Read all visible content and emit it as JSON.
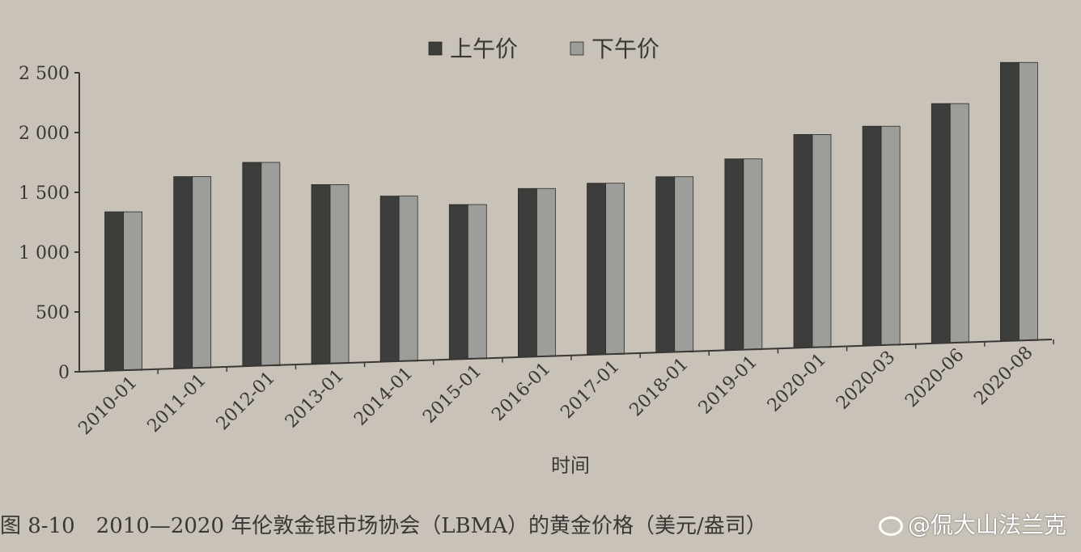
{
  "chart_data": {
    "type": "bar",
    "title": "",
    "xlabel": "时间",
    "ylabel": "",
    "ylim": [
      0,
      2500
    ],
    "yticks": [
      0,
      500,
      1000,
      1500,
      2000,
      2500
    ],
    "ytick_labels": [
      "0",
      "500",
      "1 000",
      "1 500",
      "2 000",
      "2 500"
    ],
    "categories": [
      "2010-01",
      "2011-01",
      "2012-01",
      "2013-01",
      "2014-01",
      "2015-01",
      "2016-01",
      "2017-01",
      "2018-01",
      "2019-01",
      "2020-01",
      "2020-03",
      "2020-06",
      "2020-08"
    ],
    "series": [
      {
        "name": "上午价",
        "color": "#3d3d3b",
        "values": [
          1325,
          1600,
          1700,
          1495,
          1380,
          1290,
          1405,
          1430,
          1465,
          1595,
          1780,
          1830,
          2000,
          2325
        ]
      },
      {
        "name": "下午价",
        "color": "#9d9d9a",
        "values": [
          1325,
          1600,
          1700,
          1495,
          1380,
          1290,
          1405,
          1430,
          1465,
          1595,
          1780,
          1830,
          2000,
          2325
        ]
      }
    ],
    "legend": "top-center",
    "grid": false
  },
  "caption": "图 8-10　2010—2020 年伦敦金银市场协会（LBMA）的黄金价格（美元/盎司）",
  "watermark": "@侃大山法兰克"
}
